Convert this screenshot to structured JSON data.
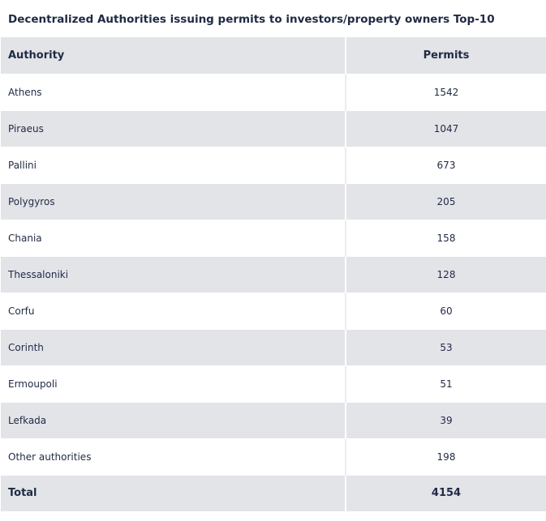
{
  "chart_data": {
    "type": "table",
    "title": "Decentralized Authorities issuing permits to investors/property owners Top-10",
    "columns": [
      "Authority",
      "Permits"
    ],
    "rows": [
      {
        "authority": "Athens",
        "permits": "1542"
      },
      {
        "authority": "Piraeus",
        "permits": "1047"
      },
      {
        "authority": "Pallini",
        "permits": "673"
      },
      {
        "authority": "Polygyros",
        "permits": "205"
      },
      {
        "authority": "Chania",
        "permits": "158"
      },
      {
        "authority": "Thessaloniki",
        "permits": "128"
      },
      {
        "authority": "Corfu",
        "permits": "60"
      },
      {
        "authority": "Corinth",
        "permits": "53"
      },
      {
        "authority": "Ermoupoli",
        "permits": "51"
      },
      {
        "authority": "Lefkada",
        "permits": "39"
      },
      {
        "authority": "Other authorities",
        "permits": "198"
      }
    ],
    "total": {
      "label": "Total",
      "permits": "4154"
    }
  },
  "colors": {
    "text": "#1f2a44",
    "band": "#e3e4e8",
    "background": "#ffffff"
  }
}
